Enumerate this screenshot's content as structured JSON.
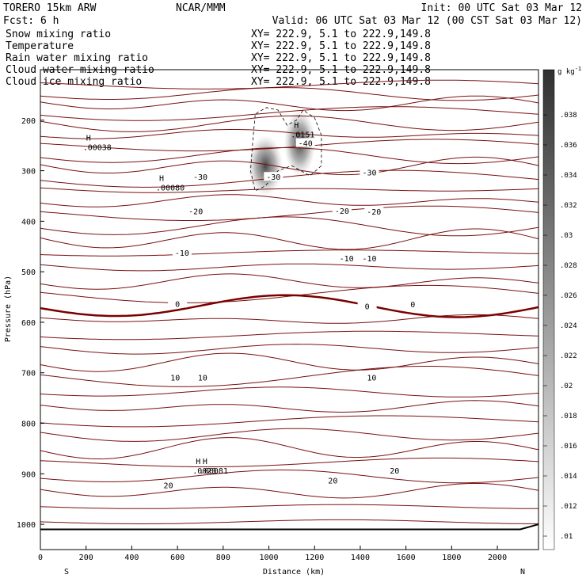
{
  "header": {
    "model": "TORERO   15km ARW",
    "center": "NCAR/MMM",
    "init": "Init: 00 UTC Sat 03 Mar 12",
    "fcst": "Fcst:     6 h",
    "valid": "Valid: 06 UTC Sat 03 Mar 12 (00 CST Sat 03 Mar 12)"
  },
  "fields": [
    {
      "name": "Snow mixing ratio",
      "xy": "XY= 222.9,   5.1 to 222.9,149.8",
      "color": "#000000"
    },
    {
      "name": "Temperature",
      "xy": "XY= 222.9,   5.1 to 222.9,149.8",
      "color": "#cc0000"
    },
    {
      "name": "Rain water mixing ratio",
      "xy": "XY= 222.9,   5.1 to 222.9,149.8",
      "color": "#cc0000"
    },
    {
      "name": "Cloud water mixing ratio",
      "xy": "XY= 222.9,   5.1 to 222.9,149.8",
      "color": "#0000aa"
    },
    {
      "name": "Cloud ice mixing ratio",
      "xy": "XY= 222.9,   5.1 to 222.9,149.8",
      "color": "#000000"
    }
  ],
  "chart_data": {
    "type": "cross-section",
    "xlabel": "Distance (km)",
    "ylabel": "Pressure (hPa)",
    "xlim": [
      0,
      2180
    ],
    "ylim": [
      1050,
      100
    ],
    "x_ticks": [
      0,
      200,
      400,
      600,
      800,
      1000,
      1200,
      1400,
      1600,
      1800,
      2000
    ],
    "y_ticks": [
      200,
      300,
      400,
      500,
      600,
      700,
      800,
      900,
      1000
    ],
    "endpoint_labels": {
      "left": "S",
      "right": "N"
    },
    "temperature_contours": [
      {
        "level": -40,
        "labels": [
          {
            "x": 1160,
            "p": 245,
            "text": "-40"
          }
        ]
      },
      {
        "level": -30,
        "labels": [
          {
            "x": 700,
            "p": 312,
            "text": "-30"
          },
          {
            "x": 1020,
            "p": 312,
            "text": "-30"
          },
          {
            "x": 1440,
            "p": 303,
            "text": "-30"
          }
        ]
      },
      {
        "level": -20,
        "labels": [
          {
            "x": 680,
            "p": 380,
            "text": "-20"
          },
          {
            "x": 1320,
            "p": 379,
            "text": "-20"
          },
          {
            "x": 1460,
            "p": 381,
            "text": "-20"
          }
        ]
      },
      {
        "level": -10,
        "labels": [
          {
            "x": 620,
            "p": 462,
            "text": "-10"
          },
          {
            "x": 1340,
            "p": 473,
            "text": "-10"
          },
          {
            "x": 1440,
            "p": 473,
            "text": "-10"
          }
        ]
      },
      {
        "level": 0,
        "labels": [
          {
            "x": 600,
            "p": 563,
            "text": "0"
          },
          {
            "x": 1430,
            "p": 568,
            "text": "0"
          },
          {
            "x": 1630,
            "p": 564,
            "text": "0"
          }
        ]
      },
      {
        "level": 10,
        "labels": [
          {
            "x": 590,
            "p": 709,
            "text": "10"
          },
          {
            "x": 710,
            "p": 709,
            "text": "10"
          },
          {
            "x": 1450,
            "p": 709,
            "text": "10"
          }
        ]
      },
      {
        "level": 20,
        "labels": [
          {
            "x": 560,
            "p": 922,
            "text": "20"
          },
          {
            "x": 1280,
            "p": 913,
            "text": "20"
          },
          {
            "x": 1550,
            "p": 893,
            "text": "20"
          }
        ]
      }
    ],
    "maxima": [
      {
        "label": "H",
        "value": ".00038",
        "x": 200,
        "p": 250,
        "color": "#000000"
      },
      {
        "label": "H",
        "value": ".00080",
        "x": 520,
        "p": 330,
        "color": "#000000"
      },
      {
        "label": "H",
        "value": ".0151",
        "x": 1110,
        "p": 225,
        "color": "#000000"
      },
      {
        "label": "H",
        "value": ".0023",
        "x": 680,
        "p": 890,
        "color": "#cc0000"
      },
      {
        "label": "H",
        "value": ".00081",
        "x": 710,
        "p": 890,
        "color": "#0000aa"
      }
    ],
    "colorbar": {
      "unit": "g kg",
      "unit_exp": "-1",
      "ticks": [
        ".01",
        ".012",
        ".014",
        ".016",
        ".018",
        ".02",
        ".022",
        ".024",
        ".026",
        ".028",
        ".03",
        ".032",
        ".034",
        ".036",
        ".038"
      ]
    }
  }
}
